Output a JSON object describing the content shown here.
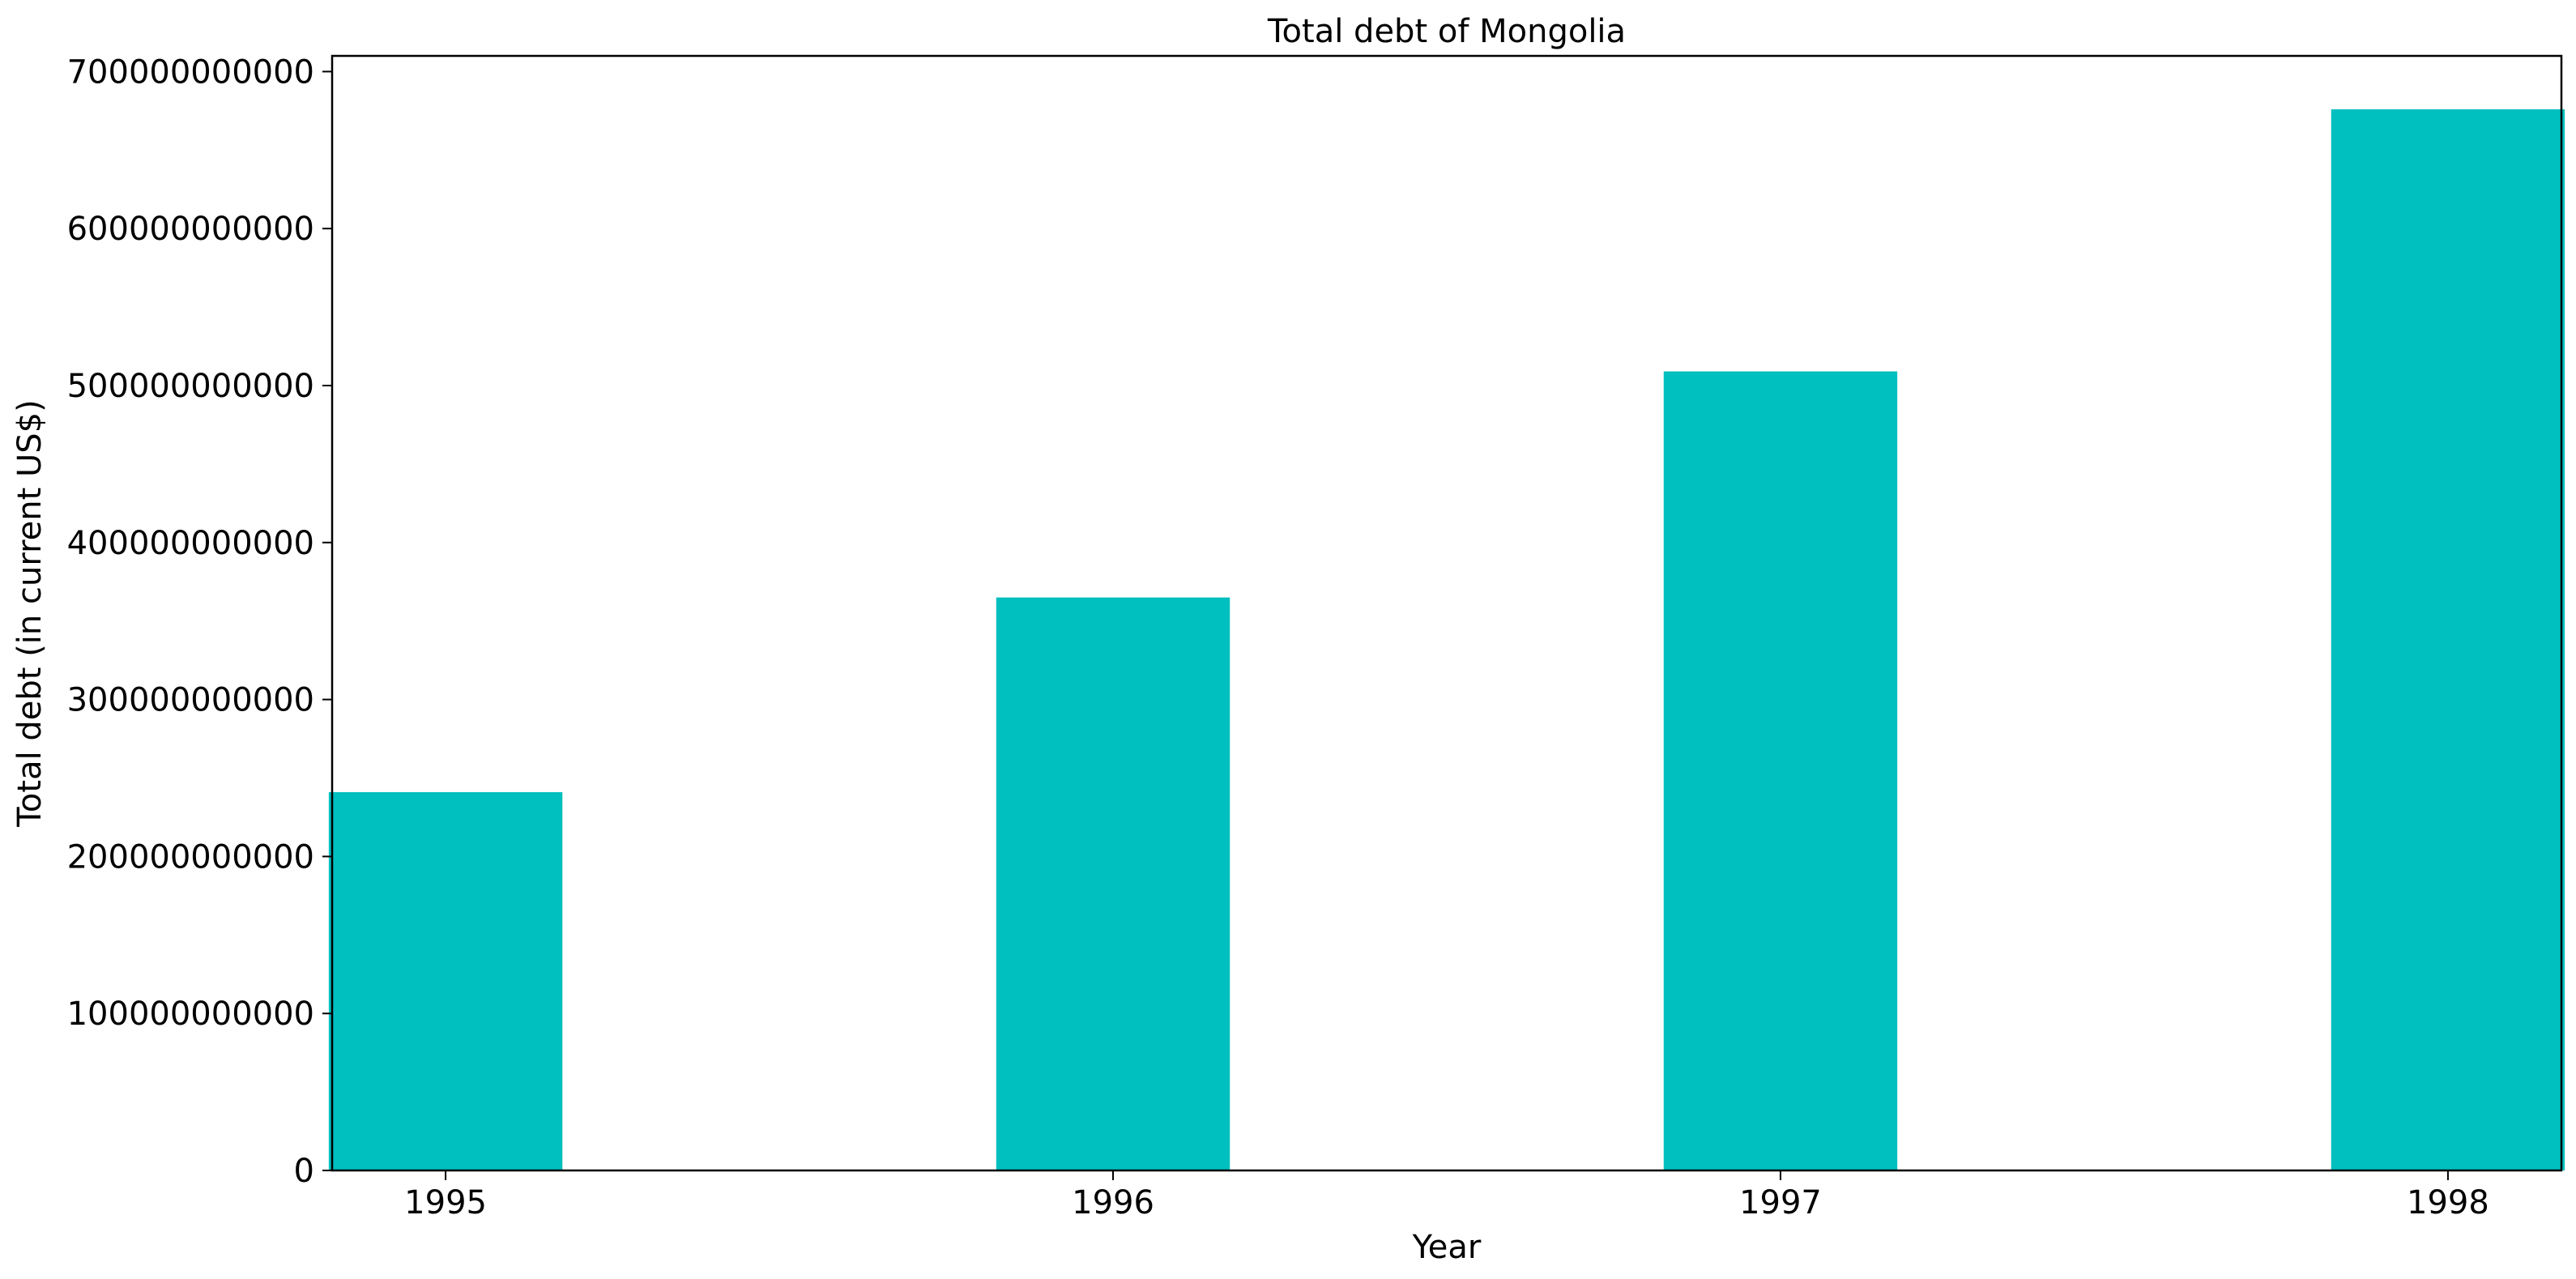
{
  "chart_data": {
    "type": "bar",
    "title": "Total debt of Mongolia",
    "xlabel": "Year",
    "ylabel": "Total debt (in current US$)",
    "categories": [
      "1995",
      "1996",
      "1997",
      "1998"
    ],
    "values": [
      241000000000,
      365000000000,
      509000000000,
      676000000000
    ],
    "ylim": [
      0,
      710000000000
    ],
    "yticks": [
      0,
      100000000000,
      200000000000,
      300000000000,
      400000000000,
      500000000000,
      600000000000,
      700000000000
    ],
    "ytick_labels": [
      "0",
      "100000000000",
      "200000000000",
      "300000000000",
      "400000000000",
      "500000000000",
      "600000000000",
      "700000000000"
    ],
    "bar_color": "#00BFBF",
    "grid": false,
    "legend": "none"
  }
}
